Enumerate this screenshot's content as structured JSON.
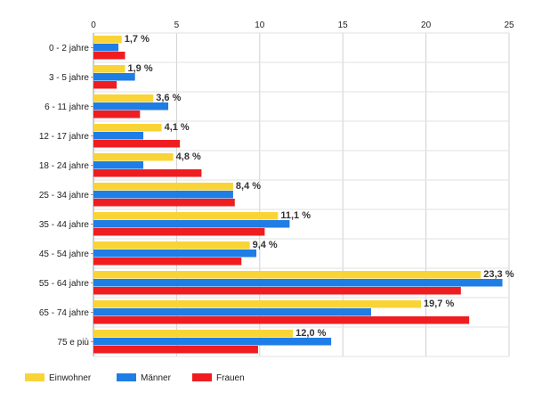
{
  "chart_data": {
    "type": "bar",
    "orientation": "horizontal",
    "categories": [
      "0 - 2 jahre",
      "3 - 5 jahre",
      "6 - 11 jahre",
      "12 - 17 jahre",
      "18 - 24 jahre",
      "25 - 34 jahre",
      "35 - 44 jahre",
      "45 - 54 jahre",
      "55 - 64 jahre",
      "65 - 74 jahre",
      "75 e più"
    ],
    "series": [
      {
        "name": "Einwohner",
        "color": "#f9d436",
        "values": [
          1.7,
          1.9,
          3.6,
          4.1,
          4.8,
          8.4,
          11.1,
          9.4,
          23.3,
          19.7,
          12.0
        ]
      },
      {
        "name": "Männer",
        "color": "#1f7de6",
        "values": [
          1.5,
          2.5,
          4.5,
          3.0,
          3.0,
          8.4,
          11.8,
          9.8,
          24.6,
          16.7,
          14.3
        ]
      },
      {
        "name": "Frauen",
        "color": "#ef1d20",
        "values": [
          1.9,
          1.4,
          2.8,
          5.2,
          6.5,
          8.5,
          10.3,
          8.9,
          22.1,
          22.6,
          9.9
        ]
      }
    ],
    "data_labels": [
      "1,7 %",
      "1,9 %",
      "3,6 %",
      "4,1 %",
      "4,8 %",
      "8,4 %",
      "11,1 %",
      "9,4 %",
      "23,3 %",
      "19,7 %",
      "12,0 %"
    ],
    "xlim": [
      0,
      25
    ],
    "xticks": [
      0,
      5,
      10,
      15,
      20,
      25
    ],
    "x_axis_position": "top",
    "grid": true,
    "legend": "bottom-left",
    "title": "",
    "xlabel": "",
    "ylabel": ""
  }
}
